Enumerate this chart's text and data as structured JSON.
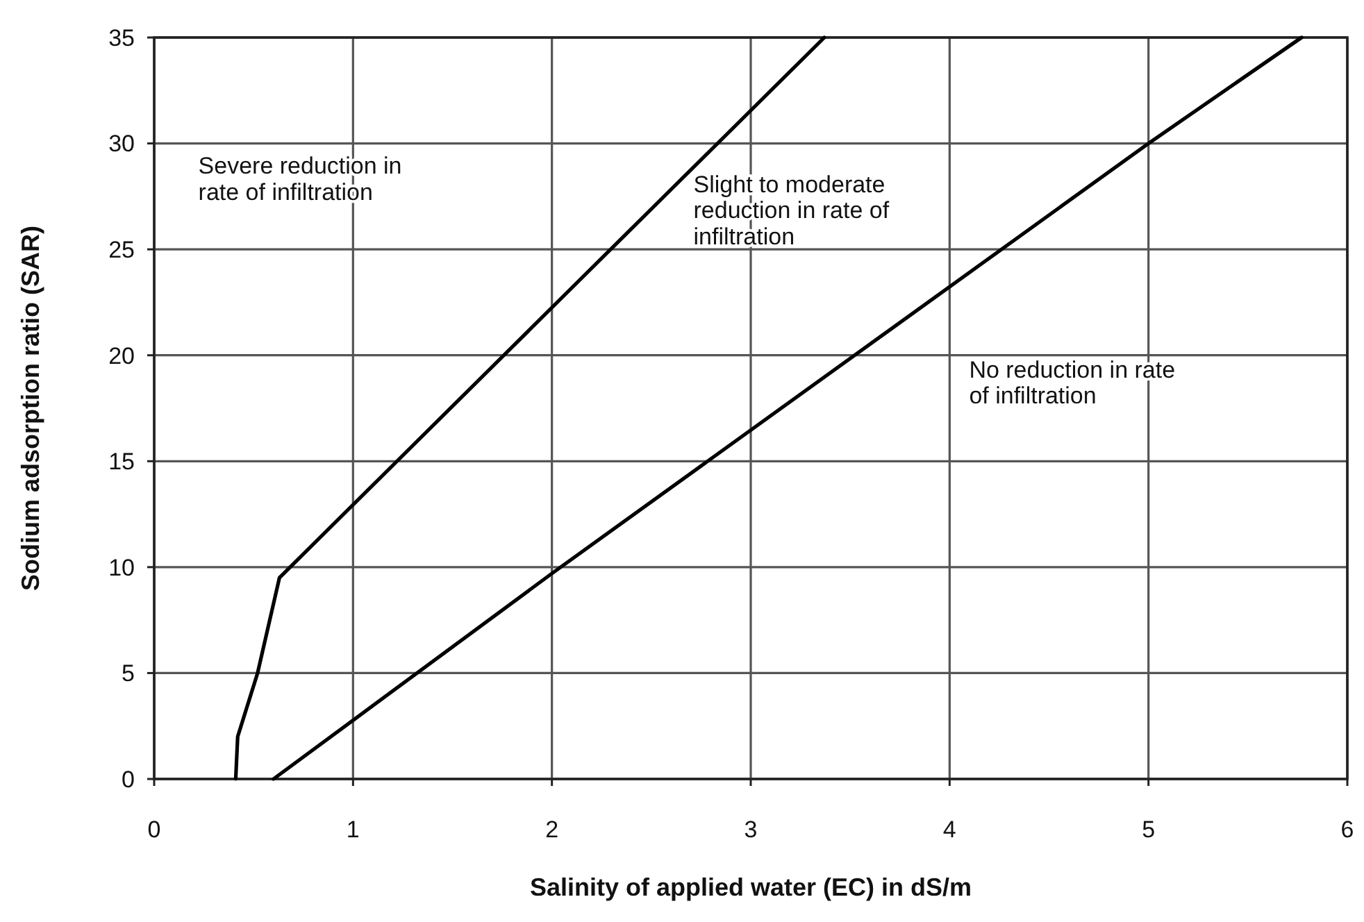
{
  "chart_data": {
    "type": "line",
    "xlabel": "Salinity of applied water (EC) in dS/m",
    "ylabel": "Sodium adsorption ratio (SAR)",
    "xlim": [
      0,
      6
    ],
    "ylim": [
      0,
      35
    ],
    "xticks": [
      0,
      1,
      2,
      3,
      4,
      5,
      6
    ],
    "yticks": [
      0,
      5,
      10,
      15,
      20,
      25,
      30,
      35
    ],
    "grid": true,
    "series": [
      {
        "color": "#000000",
        "x": [
          0.41,
          0.42,
          0.52,
          0.63,
          3.37
        ],
        "values": [
          0,
          2,
          5,
          9.5,
          35
        ]
      },
      {
        "color": "#000000",
        "x": [
          0.6,
          2,
          5,
          5.77
        ],
        "values": [
          0,
          9.7,
          30,
          35
        ]
      }
    ],
    "annotations": [
      "Severe reduction in\nrate of infiltration",
      "Slight to moderate\nreduction in rate of\ninfiltration",
      "No reduction in rate\nof infiltration"
    ]
  }
}
